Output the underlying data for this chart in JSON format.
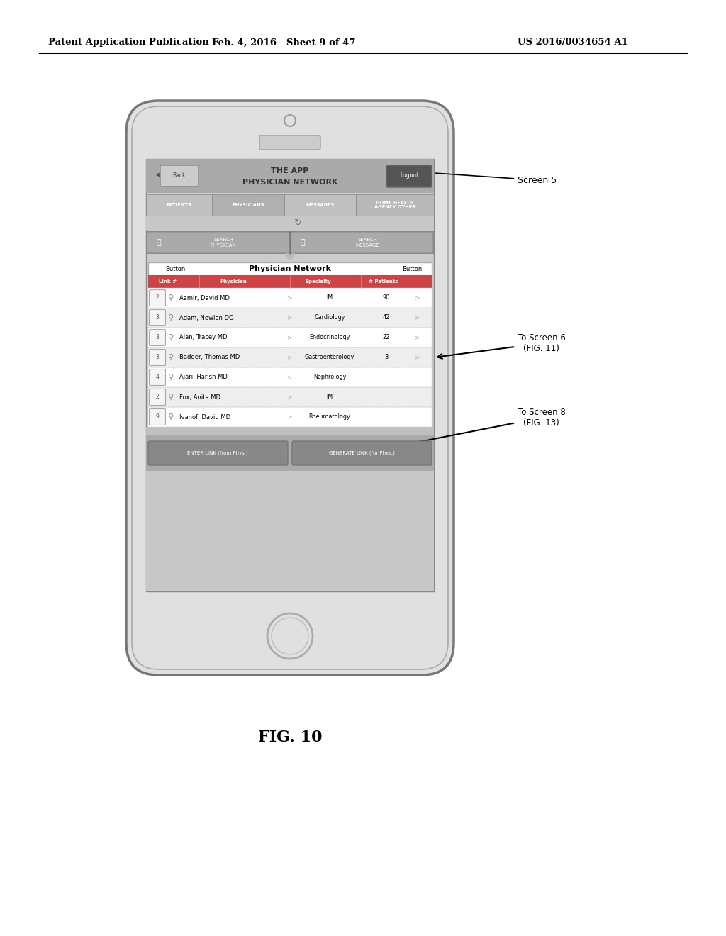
{
  "header_left": "Patent Application Publication",
  "header_mid": "Feb. 4, 2016   Sheet 9 of 47",
  "header_right": "US 2016/0034654 A1",
  "fig_label": "FIG. 10",
  "screen_label": "Screen 5",
  "arrow1_label": "To Screen 6\n(FIG. 11)",
  "arrow2_label": "To Screen 8\n(FIG. 13)",
  "app_title_line1": "THE APP",
  "app_title_line2": "PHYSICIAN NETWORK",
  "tabs": [
    "PATIENTS",
    "PHYSICIANS",
    "MESSAGES",
    "HOME HEALTH AGENCY\nOTHER"
  ],
  "search_btn1": "SEARCH\nPHYSICIAN",
  "search_btn2": "SEARCH\nMESSAGE",
  "table_header": "Physician Network",
  "table_col1": "Button",
  "table_col2": "Button",
  "col_headers": [
    "Link #",
    "Physician",
    "Specialty",
    "# Patients"
  ],
  "physicians": [
    {
      "num": "2",
      "name": "Aamir, David MD",
      "specialty": "IM",
      "patients": "90"
    },
    {
      "num": "3",
      "name": "Adam, Newlon DO",
      "specialty": "Cardiology",
      "patients": "42"
    },
    {
      "num": "3",
      "name": "Alan, Tracey MD",
      "specialty": "Endocrinology",
      "patients": "22"
    },
    {
      "num": "3",
      "name": "Badger, Thomas MD",
      "specialty": "Gastroenterology",
      "patients": "3"
    },
    {
      "num": "4",
      "name": "Ajari, Harish MD",
      "specialty": "Nephrology",
      "patients": ""
    },
    {
      "num": "2",
      "name": "Fox, Anita MD",
      "specialty": "IM",
      "patients": ""
    },
    {
      "num": "9",
      "name": "Ivanof, David MD",
      "specialty": "Rheumatology",
      "patients": ""
    }
  ],
  "btn1_label": "ENTER LINK (from Phys.)",
  "btn2_label": "GENERATE LINK (for Phys.)",
  "bg_color": "#ffffff",
  "phone_fill": "#e8e8e8",
  "phone_edge": "#666666",
  "screen_fill": "#cccccc",
  "hbar_fill": "#aaaaaa",
  "tab_active": "#aaaaaa",
  "tab_highlight": "#bbbbbb",
  "tab_dark": "#999999",
  "search_bar_fill": "#999999",
  "search_btn_fill": "#888888",
  "row_header_fill": "#cc4444",
  "row0_fill": "#ffffff",
  "row1_fill": "#f0f0f0",
  "bottom_bar_fill": "#bbbbbb",
  "action_btn_fill": "#888888"
}
